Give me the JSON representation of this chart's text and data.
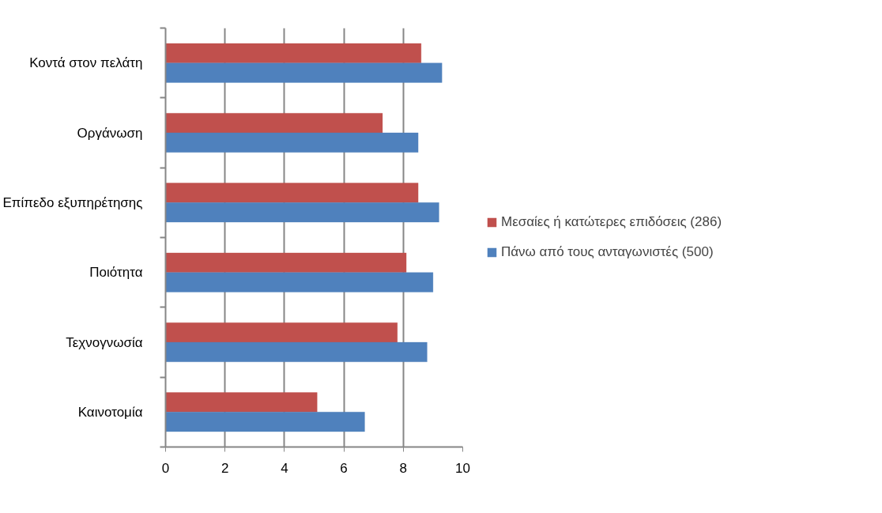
{
  "chart_data": {
    "type": "bar",
    "orientation": "horizontal",
    "categories": [
      "Κοντά στον πελάτη",
      "Οργάνωση",
      "Επίπεδο εξυπηρέτησης",
      "Ποιότητα",
      "Τεχνογνωσία",
      "Καινοτομία"
    ],
    "series": [
      {
        "name": "Μεσαίες ή κατώτερες επιδόσεις (286)",
        "color": "#c0504d",
        "values": [
          8.6,
          7.3,
          8.5,
          8.1,
          7.8,
          5.1
        ]
      },
      {
        "name": "Πάνω από τους ανταγωνιστές (500)",
        "color": "#4f81bd",
        "values": [
          9.3,
          8.5,
          9.2,
          9.0,
          8.8,
          6.7
        ]
      }
    ],
    "xlim": [
      0,
      10
    ],
    "xticks": [
      0,
      2,
      4,
      6,
      8,
      10
    ],
    "grid": "x",
    "legend": "right"
  }
}
